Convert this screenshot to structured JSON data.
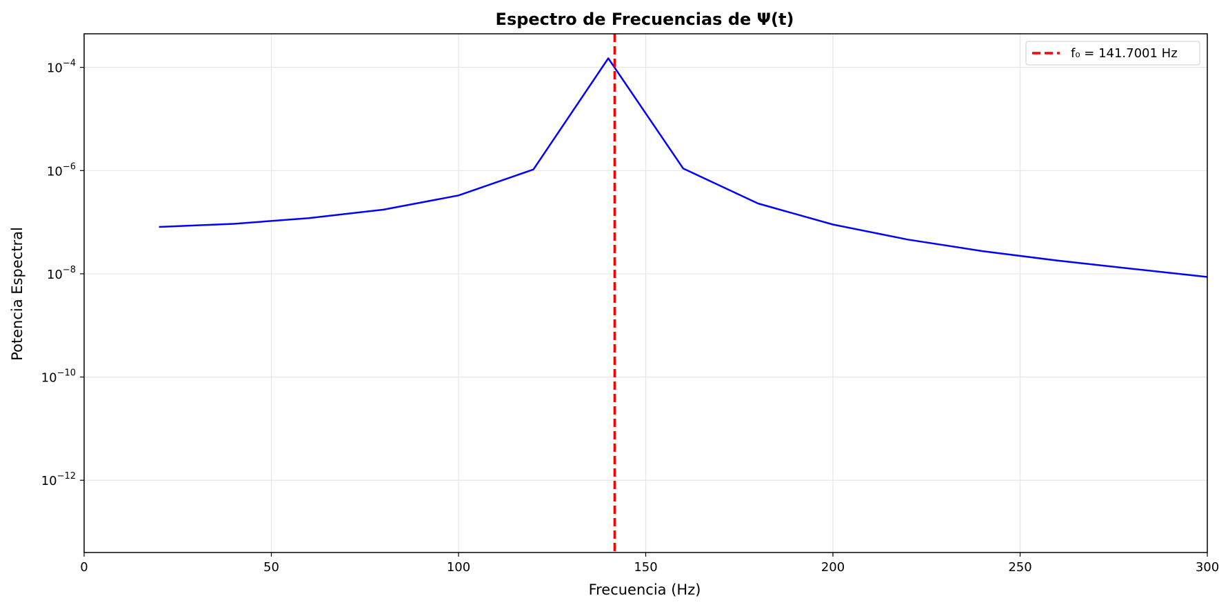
{
  "chart_data": {
    "type": "line",
    "title": "Espectro de Frecuencias de Ψ(t)",
    "xlabel": "Frecuencia (Hz)",
    "ylabel": "Potencia Espectral",
    "xlim": [
      0,
      300
    ],
    "ylim_log10": [
      -13.4,
      -3.35
    ],
    "yscale": "log",
    "grid": true,
    "legend_position": "top-right",
    "x_ticks": [
      0,
      50,
      100,
      150,
      200,
      250,
      300
    ],
    "y_ticks": [
      {
        "base": "10",
        "exp": "−12",
        "value": 1e-12
      },
      {
        "base": "10",
        "exp": "−10",
        "value": 1e-10
      },
      {
        "base": "10",
        "exp": "−8",
        "value": 1e-08
      },
      {
        "base": "10",
        "exp": "−6",
        "value": 1e-06
      },
      {
        "base": "10",
        "exp": "−4",
        "value": 0.0001
      }
    ],
    "series": [
      {
        "color": "#0000ff",
        "x": [
          20,
          40,
          60,
          80,
          100,
          120,
          140,
          160,
          180,
          200,
          220,
          240,
          260,
          280,
          300
        ],
        "y": [
          8.1e-08,
          9.3e-08,
          1.2e-07,
          1.75e-07,
          3.3e-07,
          1.05e-06,
          0.00015,
          1.1e-06,
          2.3e-07,
          9e-08,
          4.6e-08,
          2.75e-08,
          1.8e-08,
          1.25e-08,
          8.7e-09
        ]
      }
    ],
    "vline": {
      "x": 141.7001,
      "color": "#ff0000",
      "style": "dashed",
      "label": "f₀ = 141.7001 Hz"
    }
  }
}
